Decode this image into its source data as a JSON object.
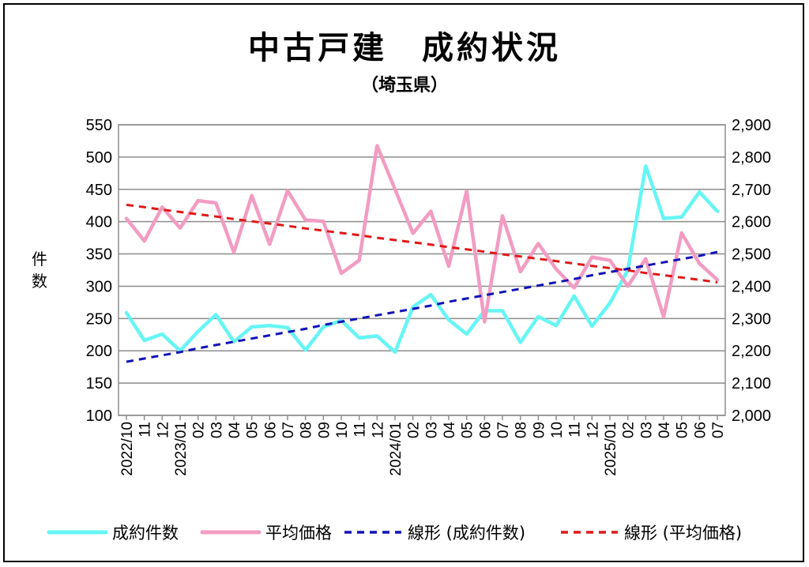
{
  "chart_data": {
    "type": "line",
    "title": "中古戸建　成約状況",
    "subtitle": "（埼玉県）",
    "ylabel": "件数",
    "ylim": [
      100,
      550
    ],
    "ystep": 50,
    "y2lim": [
      2000,
      2900
    ],
    "y2step": 100,
    "categories": [
      "2022/10",
      "11",
      "12",
      "2023/01",
      "02",
      "03",
      "04",
      "05",
      "06",
      "07",
      "08",
      "09",
      "10",
      "11",
      "12",
      "2024/01",
      "02",
      "03",
      "04",
      "05",
      "06",
      "07",
      "08",
      "09",
      "10",
      "11",
      "12",
      "2025/01",
      "02",
      "03",
      "04",
      "05",
      "06",
      "07"
    ],
    "series": [
      {
        "name": "成約件数",
        "axis": "left",
        "color": "#66f5f5",
        "style": "solid",
        "values": [
          259,
          216,
          226,
          200,
          230,
          256,
          214,
          237,
          239,
          236,
          201,
          237,
          247,
          220,
          223,
          198,
          268,
          287,
          248,
          226,
          262,
          262,
          213,
          253,
          239,
          285,
          238,
          274,
          325,
          486,
          405,
          407,
          446,
          416
        ]
      },
      {
        "name": "平均価格",
        "axis": "right",
        "color": "#f29cc2",
        "style": "solid",
        "values": [
          2610,
          2540,
          2645,
          2580,
          2665,
          2658,
          2505,
          2681,
          2530,
          2696,
          2605,
          2601,
          2440,
          2480,
          2835,
          2700,
          2564,
          2632,
          2462,
          2695,
          2290,
          2618,
          2445,
          2532,
          2453,
          2395,
          2490,
          2480,
          2400,
          2485,
          2305,
          2565,
          2470,
          2420
        ]
      },
      {
        "name": "線形 (成約件数)",
        "axis": "left",
        "color": "#1212b8",
        "style": "dashed",
        "values": [
          183,
          188,
          193,
          198,
          204,
          209,
          214,
          219,
          224,
          229,
          234,
          240,
          245,
          250,
          255,
          260,
          265,
          270,
          276,
          281,
          286,
          291,
          296,
          301,
          306,
          311,
          317,
          322,
          327,
          332,
          337,
          342,
          347,
          353
        ]
      },
      {
        "name": "線形 (平均価格)",
        "axis": "right",
        "color": "#e01818",
        "style": "dashed",
        "values": [
          2652,
          2645,
          2637,
          2630,
          2623,
          2616,
          2608,
          2601,
          2594,
          2587,
          2579,
          2572,
          2565,
          2558,
          2550,
          2543,
          2536,
          2529,
          2521,
          2514,
          2507,
          2499,
          2492,
          2485,
          2478,
          2470,
          2463,
          2456,
          2449,
          2441,
          2434,
          2427,
          2420,
          2412
        ]
      }
    ],
    "legend_position": "bottom",
    "grid": true
  }
}
